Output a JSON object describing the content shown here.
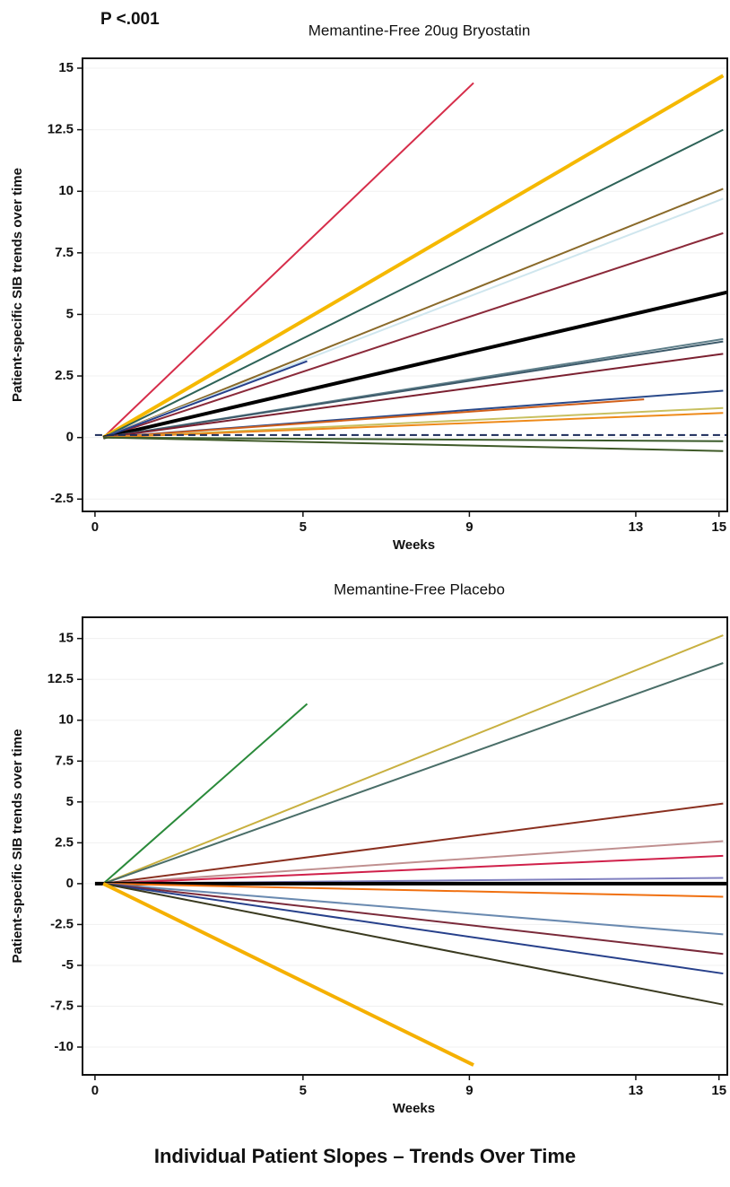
{
  "chart_data": [
    {
      "type": "line",
      "title": "Memantine-Free 20ug Bryostatin",
      "annotation": "P <.001",
      "x_label": "Weeks",
      "y_label": "Patient-specific SIB trends over time",
      "xlim": [
        -0.3,
        15.2
      ],
      "xticks": [
        0,
        5,
        9,
        13,
        15
      ],
      "ylim": [
        -3,
        15.4
      ],
      "yticks": [
        -2.5,
        0,
        2.5,
        5,
        7.5,
        10,
        12.5,
        15
      ],
      "grid": true,
      "series": [
        {
          "color": "#d62d4a",
          "x": [
            0.2,
            9.1
          ],
          "values": [
            0,
            14.4
          ]
        },
        {
          "color": "#f5b800",
          "x": [
            0.2,
            15.1
          ],
          "values": [
            0,
            14.7
          ],
          "thick": true
        },
        {
          "color": "#2e6358",
          "x": [
            0.2,
            15.1
          ],
          "values": [
            0,
            12.5
          ]
        },
        {
          "color": "#8a6a2a",
          "x": [
            0.2,
            15.1
          ],
          "values": [
            0,
            10.1
          ]
        },
        {
          "color": "#cfe6ee",
          "x": [
            0.2,
            15.1
          ],
          "values": [
            0,
            9.7
          ]
        },
        {
          "color": "#8b2a3a",
          "x": [
            0.2,
            15.1
          ],
          "values": [
            0,
            8.3
          ]
        },
        {
          "color": "#000000",
          "x": [
            0.2,
            15.2
          ],
          "values": [
            0,
            5.9
          ],
          "thick": true
        },
        {
          "color": "#27408b",
          "x": [
            0.2,
            5.1
          ],
          "values": [
            0,
            3.1
          ]
        },
        {
          "color": "#5f7f8a",
          "x": [
            0.2,
            15.1
          ],
          "values": [
            0,
            4.0
          ]
        },
        {
          "color": "#3d5a6a",
          "x": [
            0.2,
            15.1
          ],
          "values": [
            0,
            3.9
          ]
        },
        {
          "color": "#7b2030",
          "x": [
            0.2,
            15.1
          ],
          "values": [
            0,
            3.4
          ]
        },
        {
          "color": "#2a4a8a",
          "x": [
            0.2,
            15.1
          ],
          "values": [
            0,
            1.9
          ]
        },
        {
          "color": "#d2601a",
          "x": [
            0.2,
            13.2
          ],
          "values": [
            0,
            1.55
          ]
        },
        {
          "color": "#c8c060",
          "x": [
            0.2,
            15.1
          ],
          "values": [
            0,
            1.2
          ]
        },
        {
          "color": "#ee8a1a",
          "x": [
            0.2,
            15.1
          ],
          "values": [
            0,
            1.0
          ]
        },
        {
          "color": "#1a2a5a",
          "x": [
            0,
            15.2
          ],
          "values": [
            0.1,
            0.1
          ],
          "dashed": true
        },
        {
          "color": "#3a5a2a",
          "x": [
            0.2,
            15.1
          ],
          "values": [
            0,
            -0.15
          ]
        },
        {
          "color": "#3f5a28",
          "x": [
            0.2,
            15.1
          ],
          "values": [
            0,
            -0.55
          ]
        }
      ]
    },
    {
      "type": "line",
      "title": "Memantine-Free Placebo",
      "x_label": "Weeks",
      "y_label": "Patient-specific SIB trends over time",
      "xlim": [
        -0.3,
        15.2
      ],
      "xticks": [
        0,
        5,
        9,
        13,
        15
      ],
      "ylim": [
        -11.7,
        16.3
      ],
      "yticks": [
        -10,
        -7.5,
        -5,
        -2.5,
        0,
        2.5,
        5,
        7.5,
        10,
        12.5,
        15
      ],
      "grid": true,
      "series": [
        {
          "color": "#2a8a3a",
          "x": [
            0.2,
            5.1
          ],
          "values": [
            0,
            11.0
          ]
        },
        {
          "color": "#c8b040",
          "x": [
            0.2,
            15.1
          ],
          "values": [
            0,
            15.2
          ]
        },
        {
          "color": "#4a6e68",
          "x": [
            0.2,
            15.1
          ],
          "values": [
            0,
            13.5
          ]
        },
        {
          "color": "#8a3020",
          "x": [
            0.2,
            15.1
          ],
          "values": [
            0,
            4.9
          ]
        },
        {
          "color": "#c09090",
          "x": [
            0.2,
            15.1
          ],
          "values": [
            0,
            2.6
          ]
        },
        {
          "color": "#d0204a",
          "x": [
            0.2,
            15.1
          ],
          "values": [
            0,
            1.7
          ]
        },
        {
          "color": "#8080c0",
          "x": [
            0.2,
            15.1
          ],
          "values": [
            0,
            0.35
          ]
        },
        {
          "color": "#000000",
          "x": [
            0,
            15.2
          ],
          "values": [
            0,
            0
          ],
          "thick": true
        },
        {
          "color": "#f07010",
          "x": [
            0.2,
            15.1
          ],
          "values": [
            0,
            -0.8
          ]
        },
        {
          "color": "#6a8ab0",
          "x": [
            0.2,
            15.1
          ],
          "values": [
            0,
            -3.1
          ]
        },
        {
          "color": "#7a2a3a",
          "x": [
            0.2,
            15.1
          ],
          "values": [
            0,
            -4.3
          ]
        },
        {
          "color": "#27408b",
          "x": [
            0.2,
            15.1
          ],
          "values": [
            0,
            -5.5
          ]
        },
        {
          "color": "#3a3a20",
          "x": [
            0.2,
            15.1
          ],
          "values": [
            0,
            -7.4
          ]
        },
        {
          "color": "#f5b000",
          "x": [
            0.2,
            9.1
          ],
          "values": [
            0,
            -11.1
          ],
          "thick": true
        }
      ]
    }
  ],
  "caption": "Individual Patient Slopes – Trends Over Time"
}
